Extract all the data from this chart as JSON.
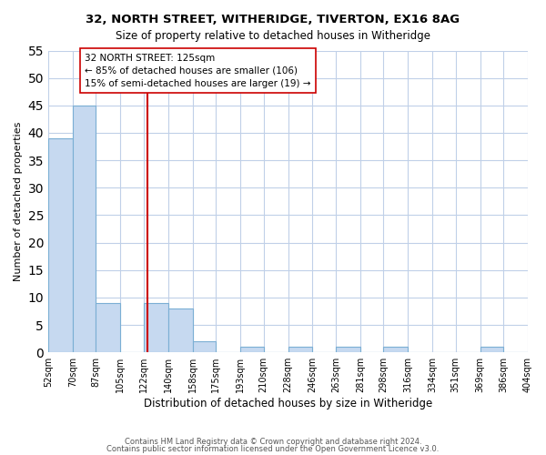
{
  "title1": "32, NORTH STREET, WITHERIDGE, TIVERTON, EX16 8AG",
  "title2": "Size of property relative to detached houses in Witheridge",
  "xlabel": "Distribution of detached houses by size in Witheridge",
  "ylabel": "Number of detached properties",
  "bar_edges": [
    52,
    70,
    87,
    105,
    122,
    140,
    158,
    175,
    193,
    210,
    228,
    246,
    263,
    281,
    298,
    316,
    334,
    351,
    369,
    386,
    404
  ],
  "bar_heights": [
    39,
    45,
    9,
    0,
    9,
    8,
    2,
    0,
    1,
    0,
    1,
    0,
    1,
    0,
    1,
    0,
    0,
    0,
    1,
    0
  ],
  "bar_color": "#c6d9f0",
  "bar_edge_color": "#7bafd4",
  "property_line_x": 125,
  "property_line_color": "#cc0000",
  "annotation_text": "32 NORTH STREET: 125sqm\n← 85% of detached houses are smaller (106)\n15% of semi-detached houses are larger (19) →",
  "annotation_box_edge_color": "#cc0000",
  "ylim": [
    0,
    55
  ],
  "yticks": [
    0,
    5,
    10,
    15,
    20,
    25,
    30,
    35,
    40,
    45,
    50,
    55
  ],
  "tick_labels": [
    "52sqm",
    "70sqm",
    "87sqm",
    "105sqm",
    "122sqm",
    "140sqm",
    "158sqm",
    "175sqm",
    "193sqm",
    "210sqm",
    "228sqm",
    "246sqm",
    "263sqm",
    "281sqm",
    "298sqm",
    "316sqm",
    "334sqm",
    "351sqm",
    "369sqm",
    "386sqm",
    "404sqm"
  ],
  "footer1": "Contains HM Land Registry data © Crown copyright and database right 2024.",
  "footer2": "Contains public sector information licensed under the Open Government Licence v3.0.",
  "background_color": "#ffffff",
  "grid_color": "#c0d0e8"
}
